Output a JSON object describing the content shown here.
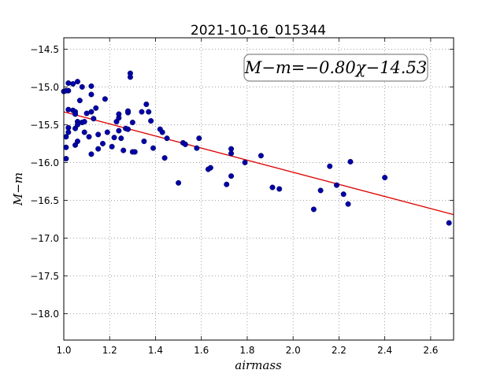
{
  "chart_data": {
    "type": "scatter",
    "title": "2021-10-16_015344",
    "xlabel": "airmass",
    "ylabel": "M−m",
    "annotation": "M−m=−0.80χ−14.53",
    "xlim": [
      1.0,
      2.7
    ],
    "ylim": [
      -18.35,
      -14.35
    ],
    "xticks": [
      1.0,
      1.2,
      1.4,
      1.6,
      1.8,
      2.0,
      2.2,
      2.4,
      2.6
    ],
    "xtick_labels": [
      "1.0",
      "1.2",
      "1.4",
      "1.6",
      "1.8",
      "2.0",
      "2.2",
      "2.4",
      "2.6"
    ],
    "yticks": [
      -14.5,
      -15.0,
      -15.5,
      -16.0,
      -16.5,
      -17.0,
      -17.5,
      -18.0
    ],
    "ytick_labels": [
      "−14.5",
      "−15.0",
      "−15.5",
      "−16.0",
      "−16.5",
      "−17.0",
      "−17.5",
      "−18.0"
    ],
    "grid": true,
    "colors": {
      "points": "#0000a8",
      "fit_line": "#dd0000"
    },
    "series": [
      {
        "points": [
          [
            1.0,
            -15.06
          ],
          [
            1.01,
            -15.05
          ],
          [
            1.02,
            -14.95
          ],
          [
            1.02,
            -15.05
          ],
          [
            1.02,
            -15.3
          ],
          [
            1.02,
            -15.54
          ],
          [
            1.02,
            -15.6
          ],
          [
            1.01,
            -15.66
          ],
          [
            1.01,
            -15.8
          ],
          [
            1.01,
            -15.95
          ],
          [
            1.04,
            -14.96
          ],
          [
            1.04,
            -15.31
          ],
          [
            1.05,
            -15.33
          ],
          [
            1.05,
            -15.36
          ],
          [
            1.05,
            -15.55
          ],
          [
            1.05,
            -15.77
          ],
          [
            1.06,
            -14.93
          ],
          [
            1.06,
            -15.46
          ],
          [
            1.06,
            -15.5
          ],
          [
            1.06,
            -15.72
          ],
          [
            1.07,
            -15.18
          ],
          [
            1.08,
            -15.0
          ],
          [
            1.08,
            -15.47
          ],
          [
            1.09,
            -15.46
          ],
          [
            1.09,
            -15.6
          ],
          [
            1.1,
            -15.35
          ],
          [
            1.11,
            -15.66
          ],
          [
            1.12,
            -15.1
          ],
          [
            1.12,
            -15.33
          ],
          [
            1.12,
            -15.89
          ],
          [
            1.12,
            -14.99
          ],
          [
            1.13,
            -15.42
          ],
          [
            1.14,
            -15.28
          ],
          [
            1.15,
            -15.63
          ],
          [
            1.15,
            -15.82
          ],
          [
            1.17,
            -15.75
          ],
          [
            1.18,
            -15.16
          ],
          [
            1.19,
            -15.6
          ],
          [
            1.21,
            -15.79
          ],
          [
            1.22,
            -15.67
          ],
          [
            1.23,
            -15.46
          ],
          [
            1.24,
            -15.41
          ],
          [
            1.24,
            -15.36
          ],
          [
            1.24,
            -15.58
          ],
          [
            1.25,
            -15.68
          ],
          [
            1.26,
            -15.84
          ],
          [
            1.27,
            -15.55
          ],
          [
            1.28,
            -15.34
          ],
          [
            1.28,
            -15.32
          ],
          [
            1.28,
            -15.56
          ],
          [
            1.29,
            -14.82
          ],
          [
            1.29,
            -14.87
          ],
          [
            1.3,
            -15.47
          ],
          [
            1.3,
            -15.86
          ],
          [
            1.31,
            -15.86
          ],
          [
            1.34,
            -15.33
          ],
          [
            1.35,
            -15.72
          ],
          [
            1.36,
            -15.23
          ],
          [
            1.37,
            -15.33
          ],
          [
            1.38,
            -15.45
          ],
          [
            1.39,
            -15.81
          ],
          [
            1.42,
            -15.56
          ],
          [
            1.43,
            -15.6
          ],
          [
            1.44,
            -15.94
          ],
          [
            1.45,
            -15.68
          ],
          [
            1.5,
            -16.27
          ],
          [
            1.52,
            -15.74
          ],
          [
            1.53,
            -15.76
          ],
          [
            1.58,
            -15.81
          ],
          [
            1.59,
            -15.68
          ],
          [
            1.63,
            -16.09
          ],
          [
            1.64,
            -16.07
          ],
          [
            1.71,
            -16.29
          ],
          [
            1.73,
            -15.82
          ],
          [
            1.73,
            -15.88
          ],
          [
            1.73,
            -16.18
          ],
          [
            1.79,
            -16.0
          ],
          [
            1.86,
            -15.91
          ],
          [
            1.91,
            -16.33
          ],
          [
            1.94,
            -16.35
          ],
          [
            2.09,
            -16.62
          ],
          [
            2.12,
            -16.37
          ],
          [
            2.16,
            -16.05
          ],
          [
            2.19,
            -16.3
          ],
          [
            2.22,
            -16.42
          ],
          [
            2.24,
            -16.55
          ],
          [
            2.25,
            -15.99
          ],
          [
            2.4,
            -16.2
          ],
          [
            2.68,
            -16.8
          ]
        ]
      }
    ],
    "fit_line": {
      "slope": -0.8,
      "intercept": -14.53,
      "x": [
        1.0,
        2.7
      ]
    }
  }
}
